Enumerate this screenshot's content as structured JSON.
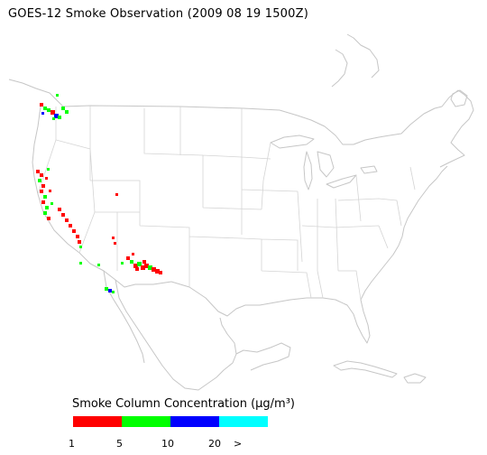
{
  "title": "GOES-12 Smoke Observation (2009 08 19  1500Z)",
  "legend": {
    "title": "Smoke Column Concentration (µg/m³)",
    "colors": [
      "#ff0000",
      "#00ff00",
      "#0000ff",
      "#00ffff"
    ],
    "ticks": [
      "1",
      "5",
      "10",
      "20",
      ">"
    ]
  },
  "colors": {
    "coastline": "#c6c6c6",
    "state_lines": "#d4d4d4"
  }
}
